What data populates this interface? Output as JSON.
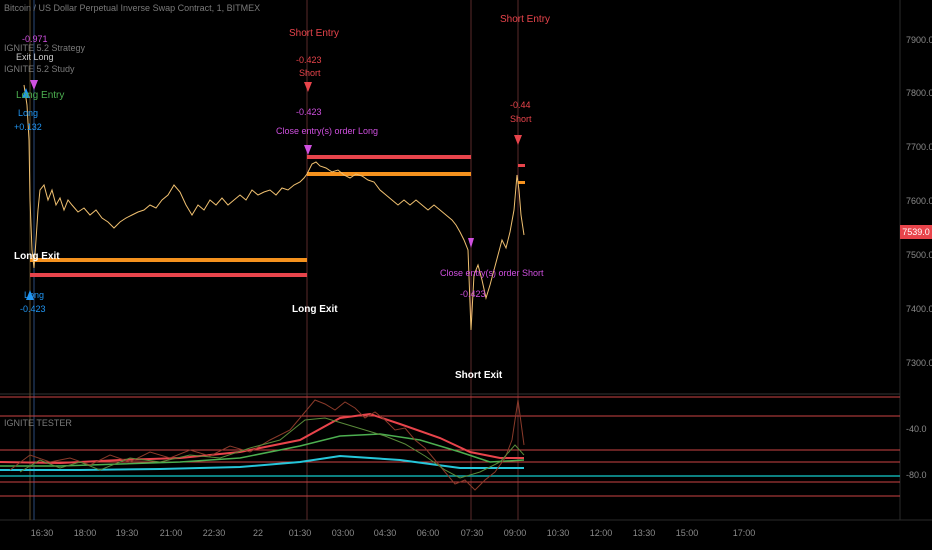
{
  "header": {
    "symbol": "Bitcoin / US Dollar Perpetual Inverse Swap Contract, 1, BITMEX",
    "strategy": "IGNITE 5.2 Strategy",
    "study": "IGNITE 5.2 Study",
    "indicator": "IGNITE TESTER"
  },
  "price_axis": [
    "7900.0",
    "7800.0",
    "7700.0",
    "7600.0",
    "7500.0",
    "7400.0",
    "7300.0"
  ],
  "current_price": "7539.0",
  "indicator_axis": [
    "-40.0",
    "-80.0"
  ],
  "time_axis": [
    "16:30",
    "18:00",
    "19:30",
    "21:00",
    "22:30",
    "22",
    "01:30",
    "03:00",
    "04:30",
    "06:00",
    "07:30",
    "09:00",
    "10:30",
    "12:00",
    "13:30",
    "15:00",
    "17:00"
  ],
  "annotations": {
    "exit_long_small": "Exit Long",
    "val_top": "-0.971",
    "long_entry": "Long Entry",
    "long_small": "Long",
    "val_long1": "+0.132",
    "long_exit_1": "Long Exit",
    "long_small2": "Long",
    "val_long2": "-0.423",
    "long_exit_2": "Long Exit",
    "short_entry_1": "Short Entry",
    "val_short1": "-0.423",
    "short_small1": "Short",
    "val_short1b": "-0.423",
    "close_long": "Close entry(s) order Long",
    "close_short": "Close entry(s) order Short",
    "val_close_short": "-0.423",
    "short_exit": "Short Exit",
    "short_entry_2": "Short Entry",
    "val_short2": "-0.44",
    "short_small2": "Short"
  },
  "colors": {
    "price_line": "#f0c070",
    "orange_level": "#f5921e",
    "red_level": "#e8444b",
    "long_marker": "#2196f3",
    "short_marker": "#e8444b",
    "close_marker": "#d050e0",
    "entry_text": "#e8444b",
    "long_entry_text": "#4caf50"
  }
}
